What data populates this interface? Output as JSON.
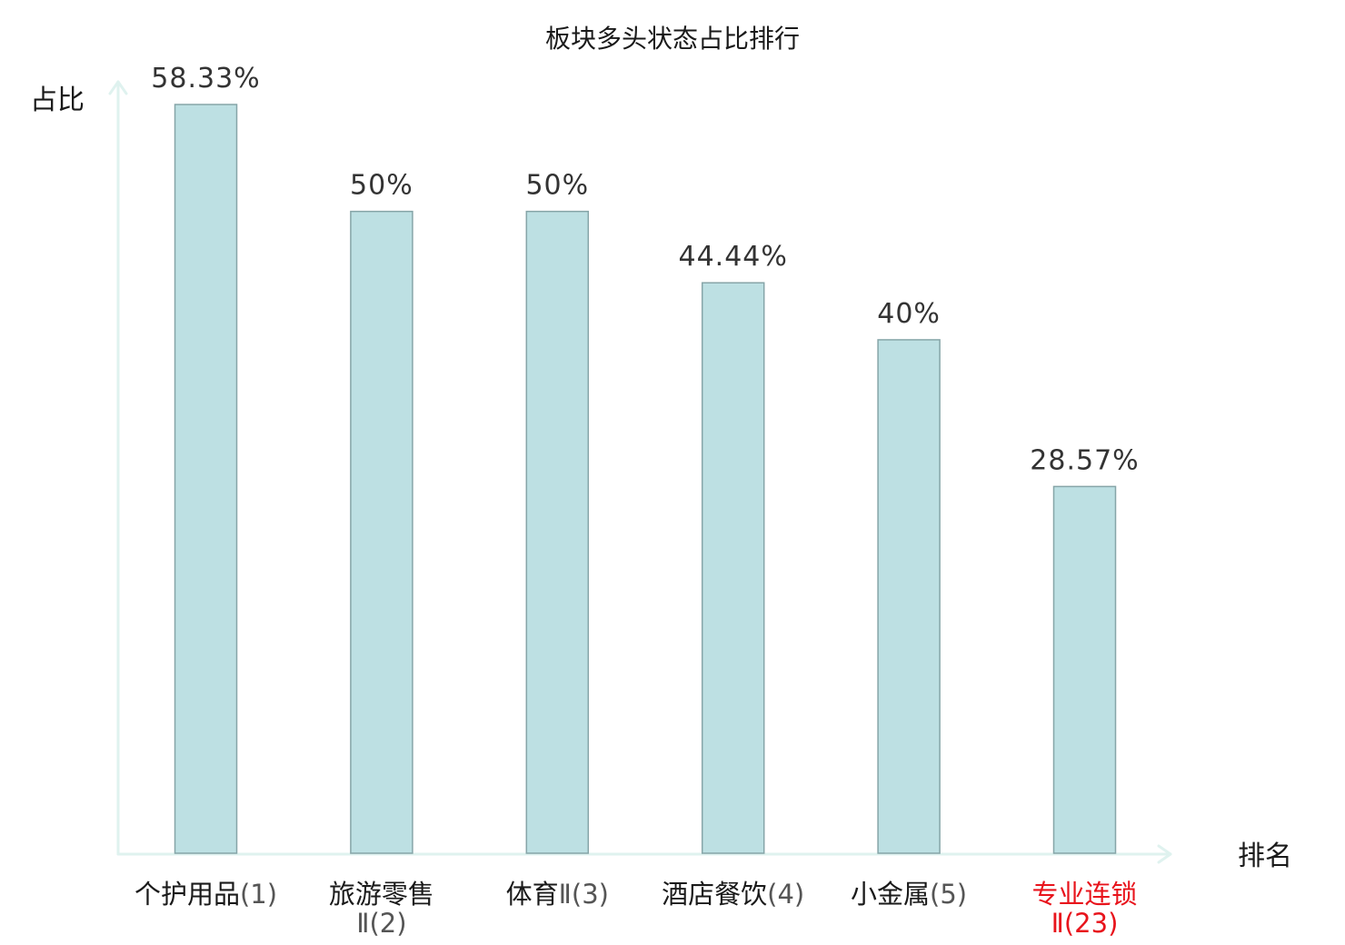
{
  "chart_data": {
    "type": "bar",
    "title": "板块多头状态占比排行",
    "xlabel": "排名",
    "ylabel": "占比",
    "ylim": [
      0,
      58.33
    ],
    "grid": false,
    "categories": [
      {
        "name": "个护用品",
        "rank": "(1)",
        "highlight": false
      },
      {
        "name": "旅游零售",
        "suffix": "Ⅱ",
        "rank": "(2)",
        "highlight": false,
        "wrap": true
      },
      {
        "name": "体育",
        "suffix": "Ⅱ",
        "rank": "(3)",
        "highlight": false
      },
      {
        "name": "酒店餐饮",
        "rank": "(4)",
        "highlight": false
      },
      {
        "name": "小金属",
        "rank": "(5)",
        "highlight": false
      },
      {
        "name": "专业连锁",
        "suffix": "Ⅱ",
        "rank": "(23)",
        "highlight": true,
        "wrap": true
      }
    ],
    "values": [
      58.33,
      50,
      50,
      44.44,
      40,
      28.57
    ],
    "value_labels": [
      "58.33%",
      "50%",
      "50%",
      "44.44%",
      "40%",
      "28.57%"
    ]
  },
  "colors": {
    "bar_fill": "#bde0e3",
    "bar_stroke": "#86a5a8",
    "axis": "#dff2ef",
    "text": "#1a1a1a",
    "value_text": "#333333",
    "rank_text": "#555555",
    "highlight": "#e8141c"
  }
}
